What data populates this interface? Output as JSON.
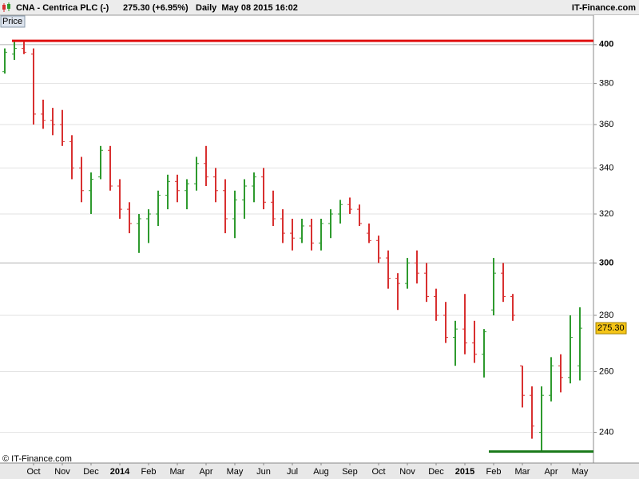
{
  "header": {
    "symbol": "CNA - Centrica PLC (-)",
    "quote": "275.30 (+6.95%)",
    "period": "Daily  May 08 2015 16:02",
    "site": "IT-Finance.com"
  },
  "panel_tab": "Price",
  "copyright": "© IT-Finance.com",
  "chart_data": {
    "type": "ohlc",
    "log_scale": true,
    "categories": [
      null,
      null,
      null,
      "Oct",
      null,
      null,
      "Nov",
      null,
      null,
      "Dec",
      null,
      null,
      "2014",
      null,
      null,
      "Feb",
      null,
      null,
      "Mar",
      null,
      null,
      "Apr",
      null,
      null,
      "May",
      null,
      null,
      "Jun",
      null,
      null,
      "Jul",
      null,
      null,
      "Aug",
      null,
      null,
      "Sep",
      null,
      null,
      "Oct",
      null,
      null,
      "Nov",
      null,
      null,
      "Dec",
      null,
      null,
      "2015",
      null,
      null,
      "Feb",
      null,
      null,
      "Mar",
      null,
      null,
      "Apr",
      null,
      null,
      "May"
    ],
    "open": [
      386,
      395,
      398,
      395,
      365,
      362,
      360,
      352,
      340,
      330,
      336,
      348,
      332,
      322,
      316,
      318,
      320,
      328,
      334,
      330,
      333,
      342,
      336,
      330,
      318,
      326,
      332,
      336,
      325,
      318,
      312,
      310,
      315,
      308,
      316,
      320,
      324,
      322,
      312,
      309,
      302,
      294,
      292,
      300,
      296,
      287,
      280,
      272,
      275,
      270,
      266,
      282,
      296,
      287,
      262,
      252,
      240,
      252,
      262,
      258,
      262
    ],
    "high": [
      398,
      402,
      402,
      398,
      372,
      368,
      367,
      355,
      345,
      338,
      350,
      350,
      335,
      325,
      320,
      322,
      330,
      337,
      337,
      335,
      345,
      350,
      340,
      335,
      330,
      335,
      338,
      340,
      330,
      322,
      318,
      318,
      318,
      318,
      322,
      326,
      327,
      324,
      316,
      311,
      305,
      296,
      302,
      305,
      300,
      290,
      285,
      278,
      288,
      278,
      275,
      302,
      300,
      288,
      262,
      255,
      255,
      265,
      266,
      280,
      283
    ],
    "low": [
      385,
      392,
      395,
      360,
      358,
      355,
      350,
      335,
      325,
      320,
      335,
      330,
      318,
      312,
      304,
      308,
      315,
      322,
      325,
      322,
      330,
      332,
      325,
      312,
      310,
      318,
      325,
      322,
      315,
      308,
      305,
      308,
      305,
      305,
      310,
      316,
      320,
      315,
      308,
      300,
      290,
      282,
      290,
      292,
      285,
      278,
      270,
      262,
      266,
      263,
      258,
      280,
      285,
      278,
      248,
      238,
      234,
      250,
      253,
      256,
      257
    ],
    "close": [
      396,
      398,
      396,
      365,
      362,
      360,
      352,
      340,
      330,
      335,
      348,
      332,
      322,
      316,
      318,
      320,
      328,
      334,
      330,
      333,
      342,
      336,
      330,
      318,
      326,
      332,
      336,
      325,
      318,
      312,
      310,
      315,
      308,
      316,
      320,
      324,
      322,
      316,
      309,
      302,
      294,
      292,
      300,
      296,
      287,
      280,
      272,
      275,
      270,
      266,
      274,
      296,
      287,
      280,
      252,
      242,
      252,
      262,
      258,
      272,
      275.3
    ],
    "up_color": "#2e9a2e",
    "down_color": "#d83030",
    "ylim": [
      230.5,
      415.8
    ],
    "yticks": [
      240,
      260,
      280,
      300,
      320,
      340,
      360,
      380,
      400
    ],
    "major_yticks": [
      300,
      400
    ],
    "grid": true,
    "last_price": {
      "value": 275.3,
      "label": "275.30"
    },
    "hlines": [
      {
        "value": 402,
        "color": "#e01010"
      },
      {
        "value": 234,
        "color": "#1a7a1a"
      }
    ]
  }
}
